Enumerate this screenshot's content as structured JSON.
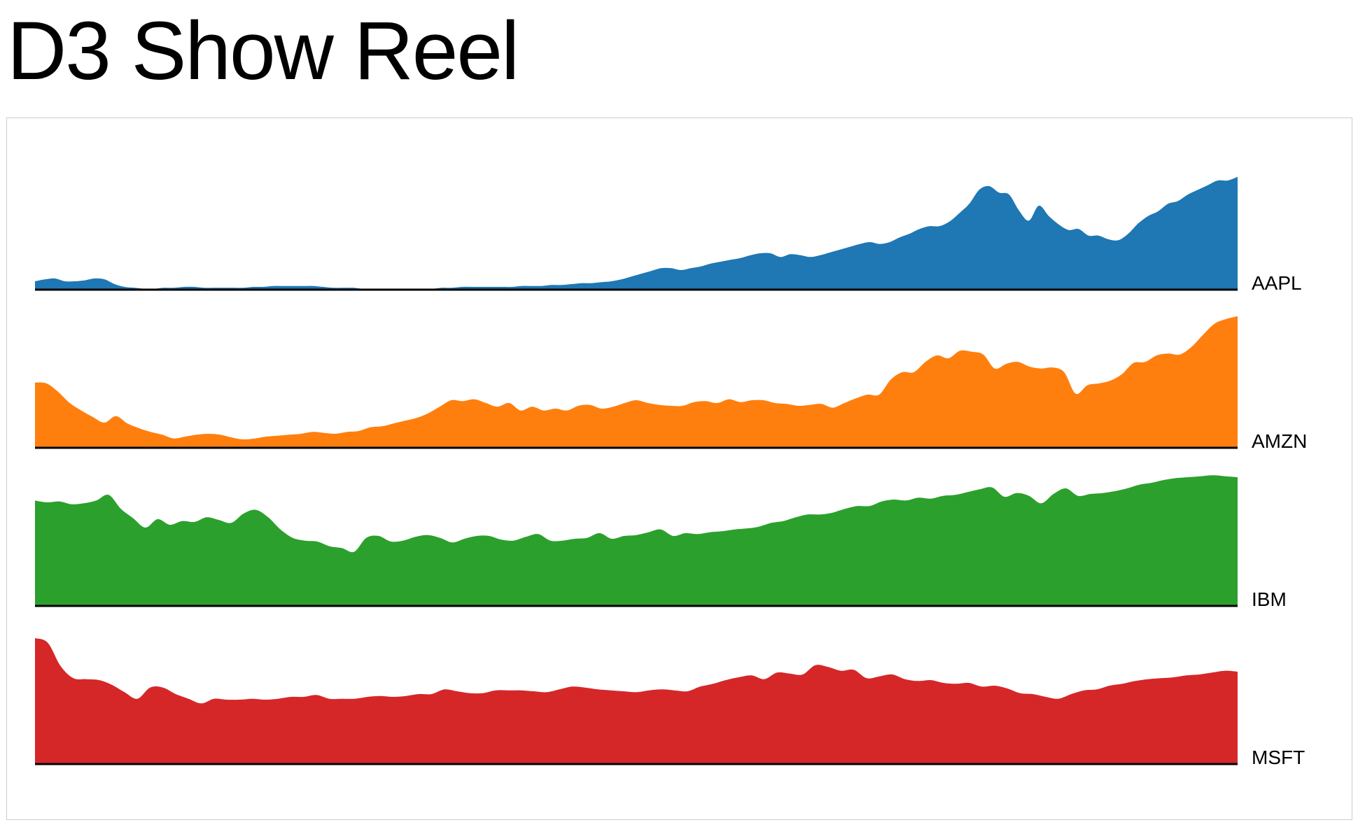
{
  "header": {
    "title": "D3 Show Reel"
  },
  "colors": {
    "AAPL": "#1f77b4",
    "AMZN": "#ff7f0e",
    "IBM": "#2ca02c",
    "MSFT": "#d62728",
    "baseline": "#000000"
  },
  "chart_data": {
    "type": "area",
    "layout": "small-multiples",
    "title": "",
    "xlabel": "",
    "ylabel": "",
    "grid": false,
    "legend": "series names printed at the right end of each area baseline",
    "series": [
      {
        "name": "AAPL",
        "color": "#1f77b4",
        "values": [
          9,
          11,
          12,
          9,
          9,
          10,
          12,
          11,
          6,
          3,
          2,
          1,
          1,
          2,
          2,
          3,
          3,
          2,
          2,
          2,
          2,
          2,
          3,
          3,
          4,
          4,
          4,
          4,
          4,
          3,
          2,
          2,
          2,
          1,
          1,
          1,
          1,
          1,
          1,
          1,
          1,
          2,
          2,
          3,
          3,
          3,
          3,
          3,
          3,
          4,
          4,
          4,
          5,
          5,
          6,
          7,
          7,
          8,
          9,
          11,
          14,
          17,
          20,
          23,
          23,
          21,
          23,
          25,
          28,
          30,
          32,
          34,
          37,
          39,
          39,
          35,
          38,
          37,
          35,
          37,
          40,
          43,
          46,
          49,
          51,
          49,
          51,
          56,
          60,
          65,
          68,
          68,
          73,
          82,
          92,
          107,
          111,
          104,
          102,
          85,
          74,
          90,
          79,
          70,
          64,
          65,
          58,
          58,
          54,
          53,
          60,
          71,
          79,
          84,
          92,
          95,
          102,
          107,
          112,
          117,
          117,
          121
        ]
      },
      {
        "name": "AMZN",
        "color": "#ff7f0e",
        "values": [
          70,
          69,
          60,
          48,
          40,
          33,
          27,
          34,
          26,
          21,
          17,
          14,
          10,
          12,
          14,
          15,
          14,
          11,
          9,
          10,
          12,
          13,
          14,
          15,
          17,
          16,
          15,
          17,
          18,
          22,
          23,
          26,
          29,
          32,
          37,
          44,
          51,
          50,
          52,
          48,
          44,
          48,
          40,
          44,
          40,
          42,
          40,
          45,
          46,
          42,
          44,
          48,
          51,
          48,
          46,
          45,
          45,
          49,
          50,
          48,
          52,
          49,
          51,
          51,
          48,
          47,
          45,
          46,
          47,
          43,
          48,
          53,
          57,
          57,
          73,
          81,
          81,
          92,
          99,
          96,
          104,
          103,
          100,
          85,
          90,
          92,
          87,
          85,
          86,
          81,
          58,
          67,
          69,
          72,
          79,
          91,
          92,
          99,
          101,
          100,
          108,
          121,
          133,
          138,
          141
        ]
      },
      {
        "name": "IBM",
        "color": "#2ca02c",
        "values": [
          113,
          111,
          112,
          109,
          110,
          113,
          119,
          104,
          94,
          84,
          93,
          87,
          91,
          90,
          95,
          92,
          89,
          99,
          103,
          95,
          82,
          73,
          70,
          69,
          64,
          62,
          58,
          73,
          75,
          69,
          70,
          74,
          76,
          73,
          68,
          72,
          75,
          75,
          71,
          70,
          74,
          77,
          70,
          70,
          72,
          73,
          78,
          72,
          75,
          76,
          79,
          82,
          75,
          78,
          77,
          79,
          80,
          82,
          83,
          85,
          89,
          91,
          95,
          98,
          98,
          100,
          104,
          107,
          107,
          112,
          114,
          113,
          116,
          115,
          118,
          119,
          122,
          125,
          127,
          117,
          121,
          118,
          110,
          120,
          126,
          118,
          120,
          121,
          123,
          126,
          130,
          132,
          135,
          137,
          138,
          139,
          140,
          139,
          138
        ]
      },
      {
        "name": "MSFT",
        "color": "#d62728",
        "values": [
          135,
          130,
          105,
          92,
          91,
          90,
          85,
          77,
          70,
          82,
          82,
          75,
          70,
          65,
          70,
          69,
          69,
          70,
          69,
          70,
          72,
          72,
          74,
          70,
          70,
          70,
          72,
          73,
          72,
          73,
          75,
          75,
          80,
          78,
          76,
          76,
          79,
          79,
          79,
          78,
          77,
          80,
          83,
          82,
          80,
          79,
          78,
          77,
          79,
          80,
          79,
          78,
          83,
          86,
          90,
          93,
          95,
          91,
          98,
          97,
          96,
          106,
          104,
          100,
          101,
          92,
          94,
          96,
          91,
          89,
          90,
          87,
          86,
          87,
          83,
          84,
          81,
          76,
          75,
          72,
          70,
          75,
          79,
          80,
          84,
          86,
          89,
          91,
          92,
          93,
          95,
          96,
          98,
          100,
          99
        ]
      }
    ],
    "series_labels": [
      "AAPL",
      "AMZN",
      "IBM",
      "MSFT"
    ]
  }
}
